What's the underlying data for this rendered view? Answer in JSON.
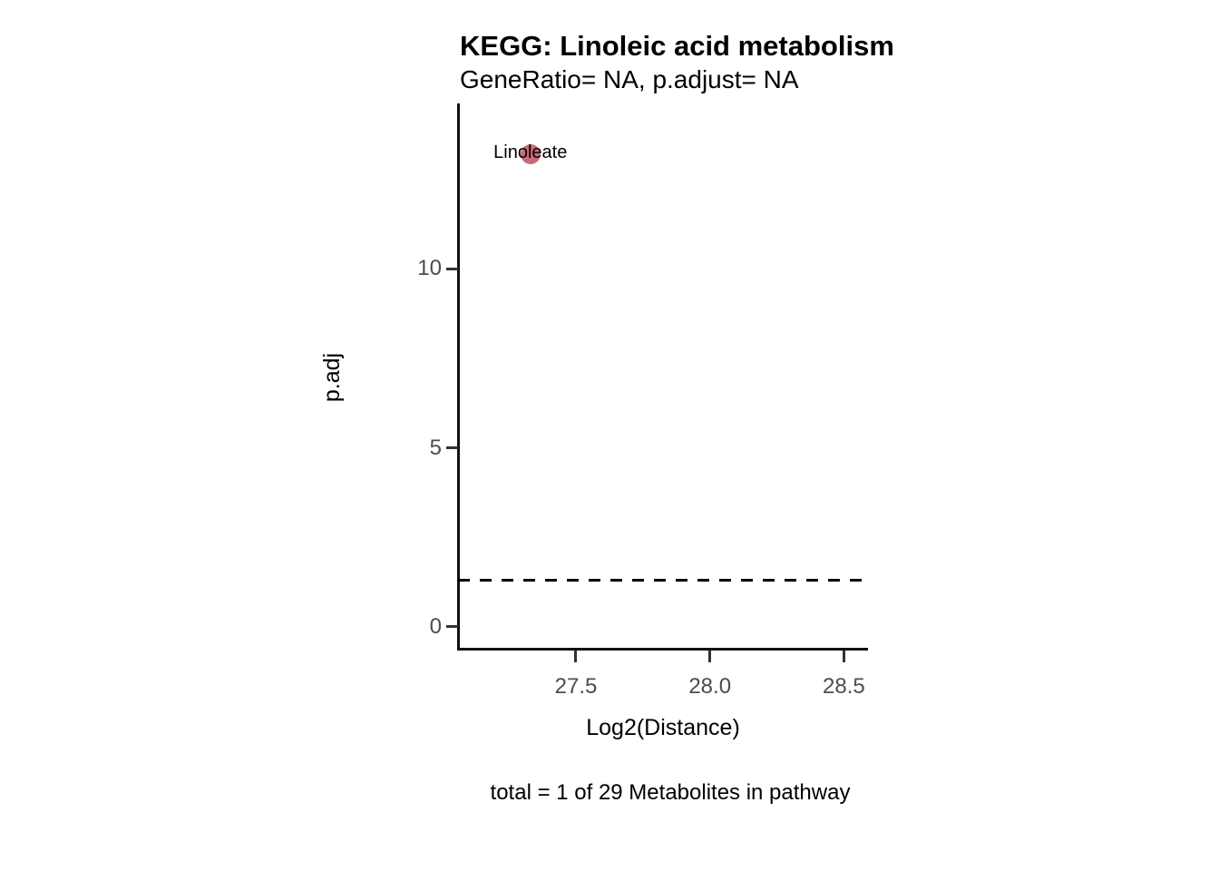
{
  "chart_data": {
    "type": "scatter",
    "title": "KEGG: Linoleic acid metabolism",
    "subtitle": "GeneRatio= NA, p.adjust= NA",
    "xlabel": "Log2(Distance)",
    "ylabel": "p.adj",
    "caption": "total = 1 of 29 Metabolites in pathway",
    "xlim": [
      27.06,
      28.59
    ],
    "ylim": [
      -0.66,
      14.62
    ],
    "x_ticks": [
      {
        "value": 27.5,
        "label": "27.5"
      },
      {
        "value": 28.0,
        "label": "28.0"
      },
      {
        "value": 28.5,
        "label": "28.5"
      }
    ],
    "y_ticks": [
      {
        "value": 0,
        "label": "0"
      },
      {
        "value": 5,
        "label": "5"
      },
      {
        "value": 10,
        "label": "10"
      }
    ],
    "grid": false,
    "legend": false,
    "points": [
      {
        "label": "Linoleate",
        "x": 27.33,
        "y": 13.2,
        "color": "#ca6a7a",
        "radius": 11
      }
    ],
    "threshold_line": {
      "y": 1.3,
      "style": "dashed",
      "color": "#000000"
    },
    "colors": {
      "axis_line": "#111111",
      "tick_mark": "#333333",
      "tick_text": "#4d4d4d",
      "text": "#000000",
      "background": "#ffffff"
    }
  }
}
